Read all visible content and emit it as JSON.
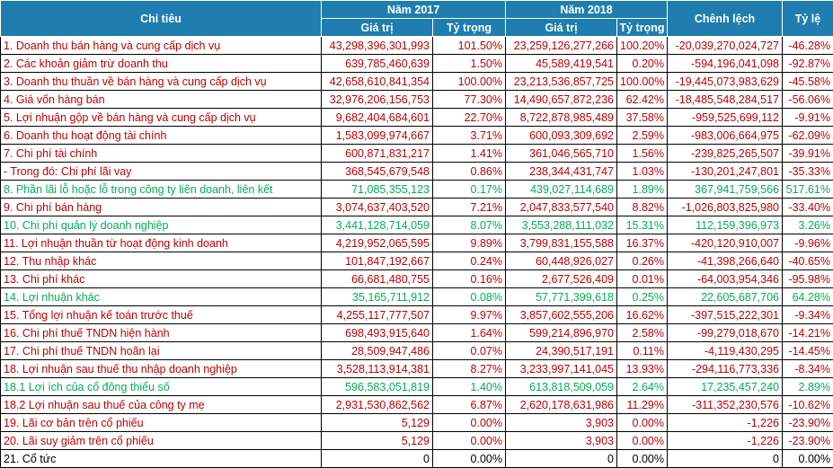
{
  "headers": {
    "indicator": "Chỉ tiêu",
    "year1": "Năm 2017",
    "year2": "Năm 2018",
    "difference": "Chênh lệch",
    "ratio": "Tỷ lệ",
    "value": "Giá trị",
    "share": "Tỷ trọng"
  },
  "rows": [
    {
      "color": "red",
      "label": "1. Doanh thu bán hàng và cung cấp dịch vụ",
      "v2017": "43,298,396,301,993",
      "s2017": "101.50%",
      "v2018": "23,259,126,277,266",
      "s2018": "100.20%",
      "diff": "-20,039,270,024,727",
      "ratio": "-46.28%"
    },
    {
      "color": "red",
      "label": "2. Các khoản giảm trừ doanh thu",
      "v2017": "639,785,460,639",
      "s2017": "1.50%",
      "v2018": "45,589,419,541",
      "s2018": "0.20%",
      "diff": "-594,196,041,098",
      "ratio": "-92.87%"
    },
    {
      "color": "red",
      "label": "3. Doanh thu thuần về bán hàng và cung cấp dịch vụ",
      "v2017": "42,658,610,841,354",
      "s2017": "100.00%",
      "v2018": "23,213,536,857,725",
      "s2018": "100.00%",
      "diff": "-19,445,073,983,629",
      "ratio": "-45.58%"
    },
    {
      "color": "red",
      "label": "4. Giá vốn hàng bán",
      "v2017": "32,976,206,156,753",
      "s2017": "77.30%",
      "v2018": "14,490,657,872,236",
      "s2018": "62.42%",
      "diff": "-18,485,548,284,517",
      "ratio": "-56.06%"
    },
    {
      "color": "red",
      "label": "5. Lợi nhuận gộp về bán hàng và cung cấp dịch vụ",
      "v2017": "9,682,404,684,601",
      "s2017": "22.70%",
      "v2018": "8,722,878,985,489",
      "s2018": "37.58%",
      "diff": "-959,525,699,112",
      "ratio": "-9.91%"
    },
    {
      "color": "red",
      "label": "6. Doanh thu hoạt động tài chính",
      "v2017": "1,583,099,974,667",
      "s2017": "3.71%",
      "v2018": "600,093,309,692",
      "s2018": "2.59%",
      "diff": "-983,006,664,975",
      "ratio": "-62.09%"
    },
    {
      "color": "red",
      "label": "7. Chi phí tài chính",
      "v2017": "600,871,831,217",
      "s2017": "1.41%",
      "v2018": "361,046,565,710",
      "s2018": "1.56%",
      "diff": "-239,825,265,507",
      "ratio": "-39.91%"
    },
    {
      "color": "red",
      "label": " - Trong đó: Chi phí lãi vay",
      "v2017": "368,545,679,548",
      "s2017": "0.86%",
      "v2018": "238,344,431,747",
      "s2018": "1.03%",
      "diff": "-130,201,247,801",
      "ratio": "-35.33%"
    },
    {
      "color": "green",
      "label": "8. Phần lãi lỗ hoặc lỗ trong công ty liên doanh, liên kết",
      "v2017": "71,085,355,123",
      "s2017": "0.17%",
      "v2018": "439,027,114,689",
      "s2018": "1.89%",
      "diff": "367,941,759,566",
      "ratio": "517.61%"
    },
    {
      "color": "red",
      "label": "9. Chi phí bán hàng",
      "v2017": "3,074,637,403,520",
      "s2017": "7.21%",
      "v2018": "2,047,833,577,540",
      "s2018": "8.82%",
      "diff": "-1,026,803,825,980",
      "ratio": "-33.40%"
    },
    {
      "color": "green",
      "label": "10. Chi phí quản lý doanh nghiệp",
      "v2017": "3,441,128,714,059",
      "s2017": "8.07%",
      "v2018": "3,553,288,111,032",
      "s2018": "15.31%",
      "diff": "112,159,396,973",
      "ratio": "3.26%"
    },
    {
      "color": "red",
      "label": "11. Lợi nhuận thuần từ hoạt động kinh doanh",
      "v2017": "4,219,952,065,595",
      "s2017": "9.89%",
      "v2018": "3,799,831,155,588",
      "s2018": "16.37%",
      "diff": "-420,120,910,007",
      "ratio": "-9.96%"
    },
    {
      "color": "red",
      "label": "12. Thu nhập khác",
      "v2017": "101,847,192,667",
      "s2017": "0.24%",
      "v2018": "60,448,926,027",
      "s2018": "0.26%",
      "diff": "-41,398,266,640",
      "ratio": "-40.65%"
    },
    {
      "color": "red",
      "label": "13. Chi phí khác",
      "v2017": "66,681,480,755",
      "s2017": "0.16%",
      "v2018": "2,677,526,409",
      "s2018": "0.01%",
      "diff": "-64,003,954,346",
      "ratio": "-95.98%"
    },
    {
      "color": "green",
      "label": "14. Lợi nhuận khác",
      "v2017": "35,165,711,912",
      "s2017": "0.08%",
      "v2018": "57,771,399,618",
      "s2018": "0.25%",
      "diff": "22,605,687,706",
      "ratio": "64.28%"
    },
    {
      "color": "red",
      "label": "15. Tổng lợi nhuận kế toán trước thuế",
      "v2017": "4,255,117,777,507",
      "s2017": "9.97%",
      "v2018": "3,857,602,555,206",
      "s2018": "16.62%",
      "diff": "-397,515,222,301",
      "ratio": "-9.34%"
    },
    {
      "color": "red",
      "label": "16. Chi phí thuế TNDN hiện hành",
      "v2017": "698,493,915,640",
      "s2017": "1.64%",
      "v2018": "599,214,896,970",
      "s2018": "2.58%",
      "diff": "-99,279,018,670",
      "ratio": "-14.21%"
    },
    {
      "color": "red",
      "label": "17. Chi phí thuế TNDN hoãn lại",
      "v2017": "28,509,947,486",
      "s2017": "0.07%",
      "v2018": "24,390,517,191",
      "s2018": "0.11%",
      "diff": "-4,119,430,295",
      "ratio": "-14.45%"
    },
    {
      "color": "red",
      "label": "18. Lợi nhuận sau thuế thu nhập doanh nghiệp",
      "v2017": "3,528,113,914,381",
      "s2017": "8.27%",
      "v2018": "3,233,997,141,045",
      "s2018": "13.93%",
      "diff": "-294,116,773,336",
      "ratio": "-8.34%"
    },
    {
      "color": "green",
      "label": "18.1 Lợi ích của cổ đông thiểu số",
      "v2017": "596,583,051,819",
      "s2017": "1.40%",
      "v2018": "613,818,509,059",
      "s2018": "2.64%",
      "diff": "17,235,457,240",
      "ratio": "2.89%"
    },
    {
      "color": "red",
      "label": "18.2 Lợi nhuận sau thuế của công ty mẹ",
      "v2017": "2,931,530,862,562",
      "s2017": "6.87%",
      "v2018": "2,620,178,631,986",
      "s2018": "11.29%",
      "diff": "-311,352,230,576",
      "ratio": "-10.62%"
    },
    {
      "color": "red",
      "label": "19. Lãi cơ bản trên cổ phiếu",
      "v2017": "5,129",
      "s2017": "0.00%",
      "v2018": "3,903",
      "s2018": "0.00%",
      "diff": "-1,226",
      "ratio": "-23.90%"
    },
    {
      "color": "red",
      "label": "20. Lãi suy giảm trên cổ phiếu",
      "v2017": "5,129",
      "s2017": "0.00%",
      "v2018": "3,903",
      "s2018": "0.00%",
      "diff": "-1,226",
      "ratio": "-23.90%"
    },
    {
      "color": "black",
      "label": "21. Cổ tức",
      "v2017": "0",
      "s2017": "0.00%",
      "v2018": "0",
      "s2018": "0.00%",
      "diff": "0",
      "ratio": "0.00%"
    }
  ]
}
